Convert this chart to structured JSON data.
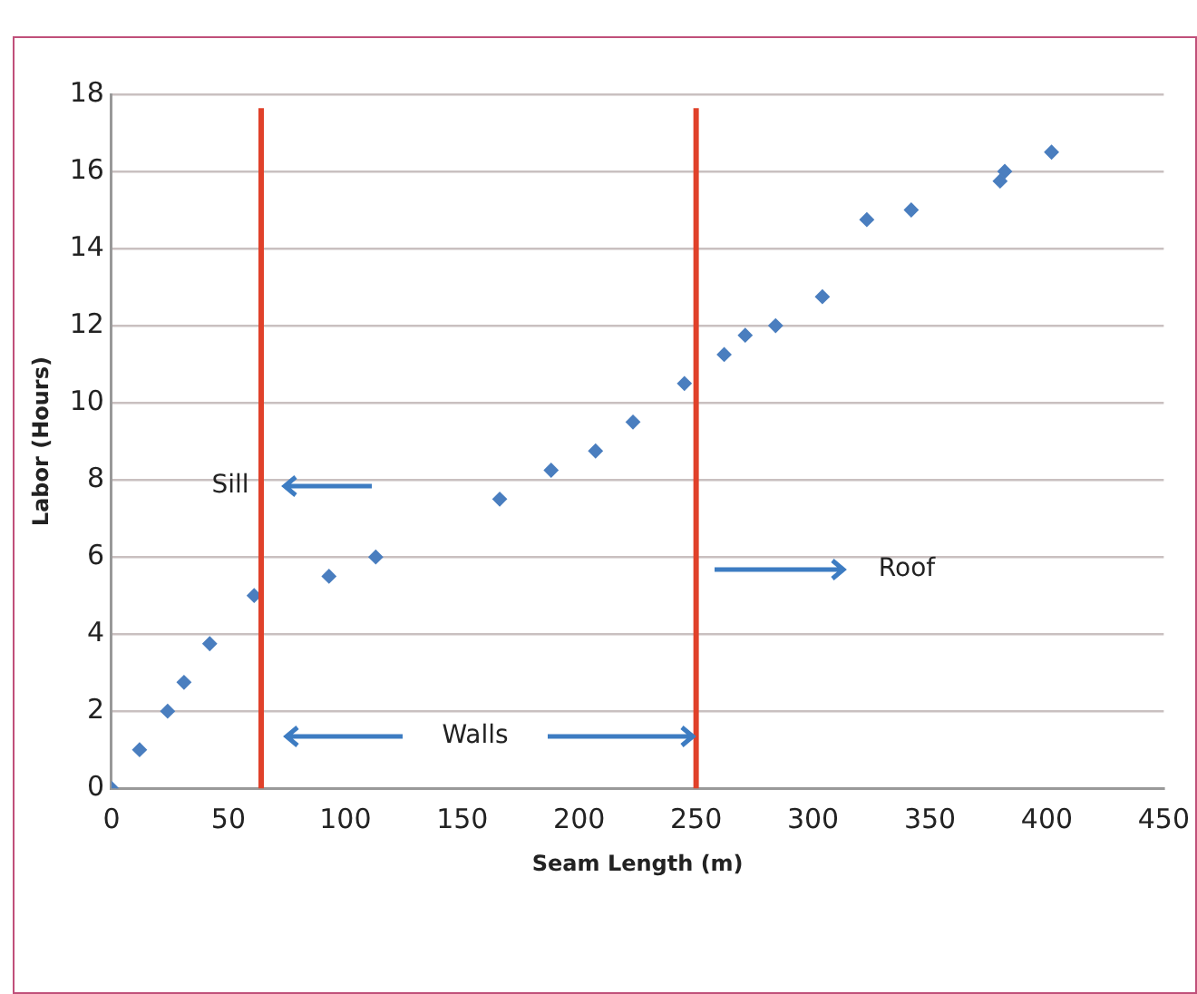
{
  "chart_data": {
    "type": "scatter",
    "xlabel": "Seam Length (m)",
    "ylabel": "Labor (Hours)",
    "x": [
      0,
      12,
      24,
      31,
      42,
      61,
      93,
      113,
      166,
      188,
      207,
      223,
      245,
      262,
      271,
      284,
      304,
      323,
      342,
      380,
      382,
      402
    ],
    "series": [
      {
        "color": "#4a7ebf",
        "values": [
          0,
          1,
          2,
          2.75,
          3.75,
          5,
          5.5,
          6,
          7.5,
          8.25,
          8.75,
          9.5,
          10.5,
          11.25,
          11.75,
          12,
          12.75,
          14.75,
          15,
          15.75,
          16,
          16.5
        ]
      }
    ],
    "xlim": [
      0,
      450
    ],
    "xticks": [
      0,
      50,
      100,
      150,
      200,
      250,
      300,
      350,
      400,
      450
    ],
    "ylim": [
      0,
      18
    ],
    "yticks": [
      0,
      2,
      4,
      6,
      8,
      10,
      12,
      14,
      16,
      18
    ],
    "grid": "y",
    "legend": false,
    "marker": "diamond",
    "ref_lines": [
      {
        "axis": "x",
        "value": 64,
        "color": "#e0412a"
      },
      {
        "axis": "x",
        "value": 250,
        "color": "#e0412a"
      }
    ],
    "annotations": [
      "Sill",
      "Walls",
      "Roof"
    ]
  }
}
